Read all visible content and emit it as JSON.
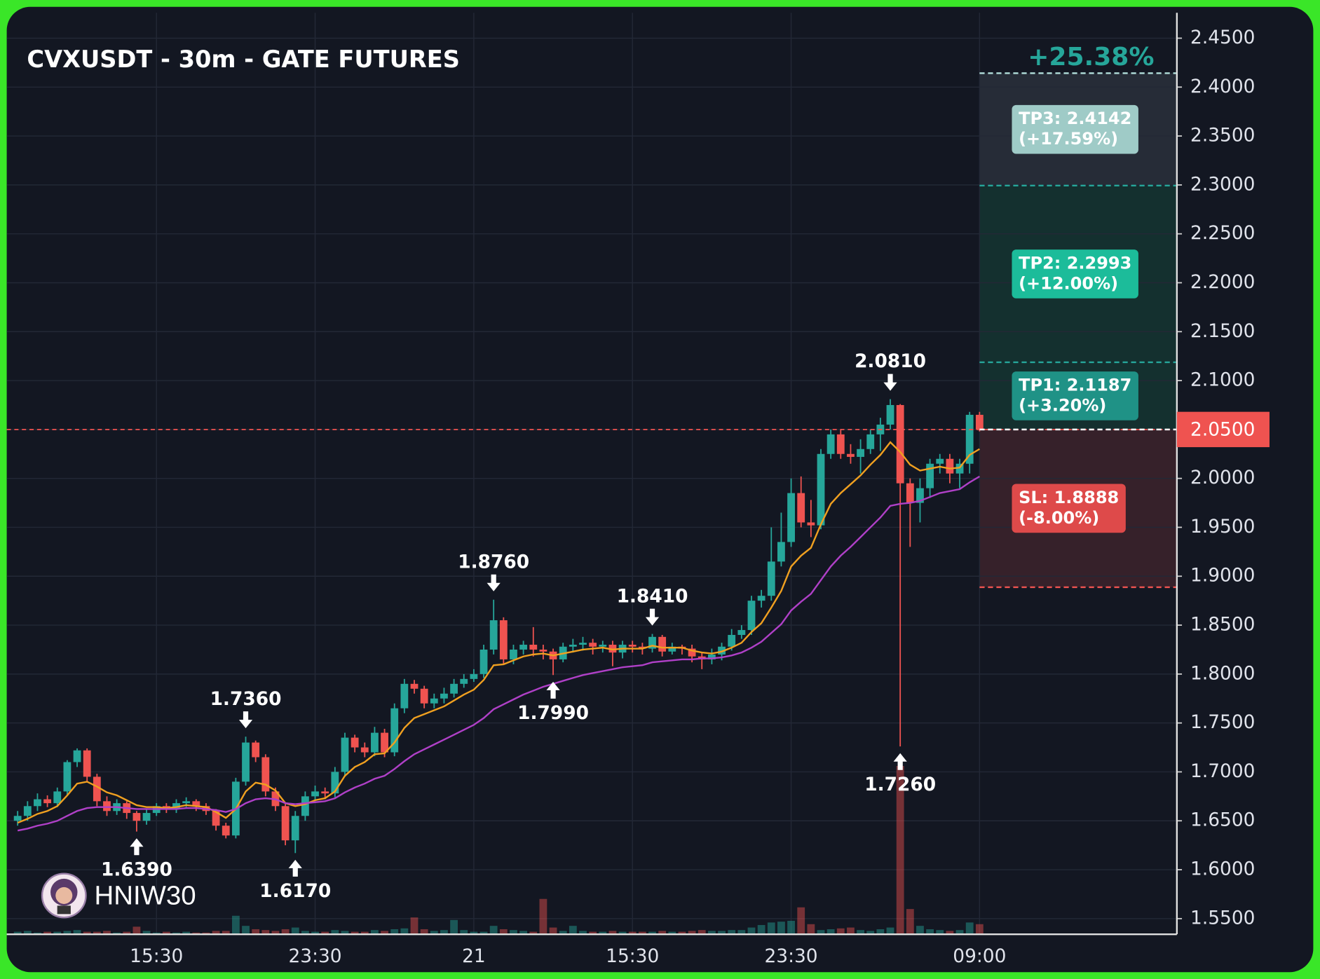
{
  "chart_data": {
    "type": "candlestick",
    "title": "CVXUSDT - 30m - GATE FUTURES",
    "change_label": "+25.38%",
    "up_color": "#26a69a",
    "down_color": "#ef5350",
    "open": [
      1.65,
      1.655,
      1.665,
      1.672,
      1.668,
      1.68,
      1.71,
      1.722,
      1.695,
      1.67,
      1.66,
      1.668,
      1.658,
      1.65,
      1.658,
      1.665,
      1.662,
      1.668,
      1.67,
      1.665,
      1.66,
      1.645,
      1.635,
      1.69,
      1.73,
      1.715,
      1.68,
      1.665,
      1.63,
      1.655,
      1.675,
      1.68,
      1.678,
      1.7,
      1.735,
      1.725,
      1.72,
      1.74,
      1.72,
      1.765,
      1.79,
      1.785,
      1.77,
      1.775,
      1.78,
      1.79,
      1.795,
      1.8,
      1.825,
      1.855,
      1.815,
      1.825,
      1.83,
      1.825,
      1.823,
      1.815,
      1.828,
      1.83,
      1.832,
      1.828,
      1.83,
      1.822,
      1.83,
      1.828,
      1.826,
      1.838,
      1.823,
      1.828,
      1.826,
      1.818,
      1.815,
      1.82,
      1.828,
      1.84,
      1.845,
      1.875,
      1.88,
      1.915,
      1.935,
      1.985,
      1.955,
      1.952,
      2.025,
      2.045,
      2.025,
      2.022,
      2.03,
      2.045,
      2.055,
      2.075,
      1.995,
      1.975,
      1.99,
      2.015,
      2.02,
      2.005,
      2.015,
      2.065
    ],
    "high": [
      1.66,
      1.67,
      1.678,
      1.676,
      1.684,
      1.712,
      1.724,
      1.724,
      1.698,
      1.675,
      1.672,
      1.67,
      1.66,
      1.662,
      1.668,
      1.668,
      1.672,
      1.674,
      1.672,
      1.668,
      1.662,
      1.648,
      1.694,
      1.736,
      1.732,
      1.718,
      1.684,
      1.668,
      1.66,
      1.68,
      1.686,
      1.684,
      1.705,
      1.74,
      1.738,
      1.73,
      1.746,
      1.744,
      1.77,
      1.795,
      1.794,
      1.788,
      1.78,
      1.786,
      1.795,
      1.8,
      1.805,
      1.83,
      1.876,
      1.858,
      1.83,
      1.834,
      1.848,
      1.83,
      1.826,
      1.832,
      1.836,
      1.838,
      1.836,
      1.834,
      1.834,
      1.834,
      1.834,
      1.832,
      1.841,
      1.84,
      1.832,
      1.83,
      1.83,
      1.822,
      1.826,
      1.832,
      1.846,
      1.85,
      1.88,
      1.886,
      1.95,
      1.965,
      2.0,
      2.002,
      1.978,
      2.03,
      2.05,
      2.05,
      2.035,
      2.04,
      2.05,
      2.062,
      2.081,
      2.076,
      2.0,
      2.0,
      2.02,
      2.025,
      2.025,
      2.02,
      2.068,
      2.068
    ],
    "low": [
      1.645,
      1.65,
      1.66,
      1.664,
      1.664,
      1.676,
      1.705,
      1.69,
      1.665,
      1.655,
      1.656,
      1.652,
      1.639,
      1.646,
      1.655,
      1.658,
      1.658,
      1.664,
      1.66,
      1.656,
      1.64,
      1.632,
      1.632,
      1.686,
      1.71,
      1.675,
      1.66,
      1.625,
      1.617,
      1.65,
      1.67,
      1.672,
      1.674,
      1.695,
      1.72,
      1.715,
      1.716,
      1.715,
      1.716,
      1.76,
      1.78,
      1.765,
      1.765,
      1.77,
      1.776,
      1.786,
      1.792,
      1.796,
      1.82,
      1.81,
      1.81,
      1.82,
      1.818,
      1.815,
      1.799,
      1.812,
      1.822,
      1.824,
      1.82,
      1.822,
      1.808,
      1.816,
      1.822,
      1.82,
      1.822,
      1.818,
      1.82,
      1.82,
      1.812,
      1.805,
      1.81,
      1.814,
      1.824,
      1.836,
      1.84,
      1.868,
      1.875,
      1.91,
      1.93,
      1.95,
      1.94,
      1.948,
      2.02,
      2.02,
      2.015,
      2.005,
      2.025,
      2.028,
      2.05,
      1.726,
      1.93,
      1.955,
      1.98,
      2.005,
      1.995,
      1.99,
      2.005,
      2.048
    ],
    "close": [
      1.655,
      1.665,
      1.672,
      1.668,
      1.68,
      1.71,
      1.722,
      1.695,
      1.67,
      1.66,
      1.668,
      1.658,
      1.65,
      1.658,
      1.665,
      1.662,
      1.668,
      1.67,
      1.665,
      1.66,
      1.645,
      1.635,
      1.69,
      1.73,
      1.715,
      1.68,
      1.665,
      1.63,
      1.655,
      1.675,
      1.68,
      1.678,
      1.7,
      1.735,
      1.725,
      1.72,
      1.74,
      1.72,
      1.765,
      1.79,
      1.785,
      1.77,
      1.775,
      1.78,
      1.79,
      1.795,
      1.8,
      1.825,
      1.855,
      1.815,
      1.825,
      1.83,
      1.825,
      1.823,
      1.815,
      1.828,
      1.83,
      1.832,
      1.828,
      1.83,
      1.822,
      1.83,
      1.828,
      1.826,
      1.838,
      1.823,
      1.828,
      1.826,
      1.818,
      1.815,
      1.82,
      1.828,
      1.84,
      1.845,
      1.875,
      1.88,
      1.915,
      1.935,
      1.985,
      1.955,
      1.952,
      2.025,
      2.045,
      2.025,
      2.022,
      2.03,
      2.045,
      2.055,
      2.075,
      1.995,
      1.975,
      1.99,
      2.015,
      2.02,
      2.005,
      2.015,
      2.065,
      2.05
    ],
    "volume": [
      3,
      4,
      2,
      3,
      3,
      4,
      5,
      3,
      3,
      4,
      2,
      3,
      9,
      4,
      2,
      3,
      2,
      3,
      2,
      2,
      4,
      4,
      22,
      10,
      6,
      5,
      4,
      6,
      8,
      4,
      3,
      3,
      5,
      4,
      3,
      3,
      5,
      4,
      6,
      7,
      20,
      6,
      4,
      5,
      17,
      5,
      3,
      3,
      10,
      6,
      5,
      4,
      3,
      42,
      8,
      4,
      10,
      4,
      3,
      3,
      4,
      3,
      3,
      3,
      3,
      4,
      3,
      3,
      4,
      5,
      4,
      4,
      5,
      5,
      8,
      11,
      14,
      15,
      16,
      32,
      12,
      5,
      6,
      7,
      8,
      5,
      4,
      6,
      8,
      200,
      30,
      10,
      6,
      5,
      4,
      5,
      14,
      12
    ],
    "lines": [
      {
        "color": "#f0a020",
        "values": [
          1.648,
          1.652,
          1.657,
          1.66,
          1.665,
          1.676,
          1.688,
          1.69,
          1.685,
          1.679,
          1.676,
          1.671,
          1.666,
          1.664,
          1.664,
          1.663,
          1.664,
          1.666,
          1.665,
          1.664,
          1.659,
          1.653,
          1.662,
          1.68,
          1.689,
          1.687,
          1.681,
          1.668,
          1.665,
          1.667,
          1.671,
          1.673,
          1.68,
          1.696,
          1.705,
          1.71,
          1.718,
          1.719,
          1.73,
          1.745,
          1.755,
          1.759,
          1.763,
          1.767,
          1.773,
          1.779,
          1.784,
          1.794,
          1.809,
          1.81,
          1.814,
          1.818,
          1.82,
          1.821,
          1.819,
          1.821,
          1.823,
          1.825,
          1.826,
          1.827,
          1.825,
          1.826,
          1.826,
          1.826,
          1.829,
          1.827,
          1.827,
          1.827,
          1.824,
          1.822,
          1.821,
          1.823,
          1.827,
          1.832,
          1.843,
          1.852,
          1.868,
          1.885,
          1.91,
          1.921,
          1.929,
          1.953,
          1.974,
          1.985,
          1.994,
          2.003,
          2.014,
          2.024,
          2.037,
          2.027,
          2.014,
          2.008,
          2.01,
          2.012,
          2.01,
          2.011,
          2.024,
          2.03
        ]
      },
      {
        "color": "#b040c8",
        "values": [
          1.64,
          1.642,
          1.645,
          1.647,
          1.65,
          1.655,
          1.66,
          1.663,
          1.664,
          1.664,
          1.664,
          1.663,
          1.662,
          1.662,
          1.662,
          1.662,
          1.662,
          1.663,
          1.663,
          1.662,
          1.661,
          1.659,
          1.662,
          1.668,
          1.672,
          1.673,
          1.672,
          1.668,
          1.667,
          1.668,
          1.669,
          1.67,
          1.673,
          1.679,
          1.684,
          1.688,
          1.693,
          1.696,
          1.703,
          1.711,
          1.718,
          1.723,
          1.728,
          1.733,
          1.738,
          1.743,
          1.748,
          1.755,
          1.764,
          1.769,
          1.774,
          1.779,
          1.783,
          1.787,
          1.79,
          1.793,
          1.796,
          1.799,
          1.801,
          1.803,
          1.805,
          1.807,
          1.808,
          1.809,
          1.812,
          1.813,
          1.814,
          1.815,
          1.815,
          1.816,
          1.816,
          1.817,
          1.819,
          1.822,
          1.827,
          1.833,
          1.842,
          1.851,
          1.865,
          1.874,
          1.882,
          1.896,
          1.91,
          1.921,
          1.93,
          1.94,
          1.95,
          1.96,
          1.972,
          1.974,
          1.975,
          1.977,
          1.981,
          1.985,
          1.987,
          1.989,
          1.996,
          2.002
        ]
      }
    ],
    "xlim": [
      -1.1,
      116.9
    ],
    "xticks": [
      {
        "value": 14,
        "label": "15:30"
      },
      {
        "value": 30,
        "label": "23:30"
      },
      {
        "value": 46,
        "label": "21"
      },
      {
        "value": 62,
        "label": "15:30"
      },
      {
        "value": 78,
        "label": "23:30"
      },
      {
        "value": 97,
        "label": "09:00"
      }
    ],
    "ylim": [
      1.534,
      2.476
    ],
    "yticks": [
      {
        "value": 1.55,
        "label": "1.5500"
      },
      {
        "value": 1.6,
        "label": "1.6000"
      },
      {
        "value": 1.65,
        "label": "1.6500"
      },
      {
        "value": 1.7,
        "label": "1.7000"
      },
      {
        "value": 1.75,
        "label": "1.7500"
      },
      {
        "value": 1.8,
        "label": "1.8000"
      },
      {
        "value": 1.85,
        "label": "1.8500"
      },
      {
        "value": 1.9,
        "label": "1.9000"
      },
      {
        "value": 1.95,
        "label": "1.9500"
      },
      {
        "value": 2.0,
        "label": "2.0000"
      },
      {
        "value": 2.05,
        "label": "2.0500"
      },
      {
        "value": 2.1,
        "label": "2.1000"
      },
      {
        "value": 2.15,
        "label": "2.1500"
      },
      {
        "value": 2.2,
        "label": "2.2000"
      },
      {
        "value": 2.25,
        "label": "2.2500"
      },
      {
        "value": 2.3,
        "label": "2.3000"
      },
      {
        "value": 2.35,
        "label": "2.3500"
      },
      {
        "value": 2.4,
        "label": "2.4000"
      },
      {
        "value": 2.45,
        "label": "2.4500"
      }
    ],
    "grid": true,
    "last_price": {
      "value": 2.05,
      "label": "2.0500",
      "color": "#ef5350"
    },
    "levels": [
      {
        "label": "TP3: 2.4142",
        "change": "(+17.59%)",
        "value": 2.4142,
        "color": "#9fcbc7",
        "line_color": "#b2dfdb",
        "zone_color": "#262c37"
      },
      {
        "label": "TP2: 2.2993",
        "change": "(+12.00%)",
        "value": 2.2993,
        "color": "#1cbc9a",
        "line_color": "#26a69a",
        "zone_color": "#14302f"
      },
      {
        "label": "TP1: 2.1187",
        "change": "(+3.20%)",
        "value": 2.1187,
        "color": "#1f9286",
        "line_color": "#26a69a",
        "zone_color": "#14302f"
      },
      {
        "label": "SL: 1.8888",
        "change": "(-8.00%)",
        "value": 1.8888,
        "color": "#de4a4a",
        "line_color": "#ef5350",
        "zone_color": "#36212a"
      }
    ],
    "annotations": [
      {
        "value": 1.639,
        "label": "1.6390",
        "x": 12,
        "side": "low"
      },
      {
        "value": 1.736,
        "label": "1.7360",
        "x": 23,
        "side": "high"
      },
      {
        "value": 1.617,
        "label": "1.6170",
        "x": 28,
        "side": "low"
      },
      {
        "value": 1.876,
        "label": "1.8760",
        "x": 48,
        "side": "high"
      },
      {
        "value": 1.799,
        "label": "1.7990",
        "x": 54,
        "side": "low"
      },
      {
        "value": 1.841,
        "label": "1.8410",
        "x": 64,
        "side": "high"
      },
      {
        "value": 2.081,
        "label": "2.0810",
        "x": 88,
        "side": "high"
      },
      {
        "value": 1.726,
        "label": "1.7260",
        "x": 89,
        "side": "low"
      }
    ],
    "watermark": "HNIW30"
  }
}
